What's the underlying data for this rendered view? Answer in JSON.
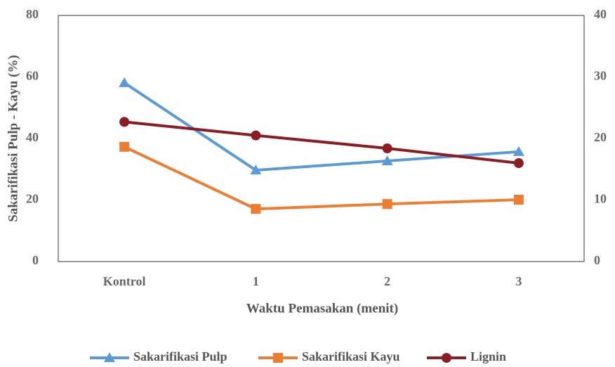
{
  "chart_data": {
    "type": "line",
    "categories": [
      "Kontrol",
      "1",
      "2",
      "3"
    ],
    "x_label": "Waktu Pemasakan (menit)",
    "y_label": "Sakarifikasi Pulp - Kayu (%)",
    "ylim": [
      0,
      80
    ],
    "yticks": [
      0,
      20,
      40,
      60,
      80
    ],
    "y2lim": [
      0,
      40
    ],
    "y2ticks": [
      0,
      10,
      20,
      30,
      40
    ],
    "grid": false,
    "legend": "bottom",
    "series": [
      {
        "name": "Sakarifikasi Pulp",
        "color": "#5b9bd5",
        "marker": "triangle",
        "values": [
          58.1,
          29.7,
          32.7,
          35.7
        ]
      },
      {
        "name": "Sakarifikasi Kayu",
        "color": "#ed7d31",
        "marker": "square",
        "values": [
          37.3,
          17.1,
          18.7,
          20.1
        ]
      },
      {
        "name": "Lignin",
        "color": "#8c1c23",
        "marker": "circle",
        "axis": "y2",
        "values": [
          22.7,
          20.5,
          18.4,
          16.0
        ]
      }
    ]
  }
}
